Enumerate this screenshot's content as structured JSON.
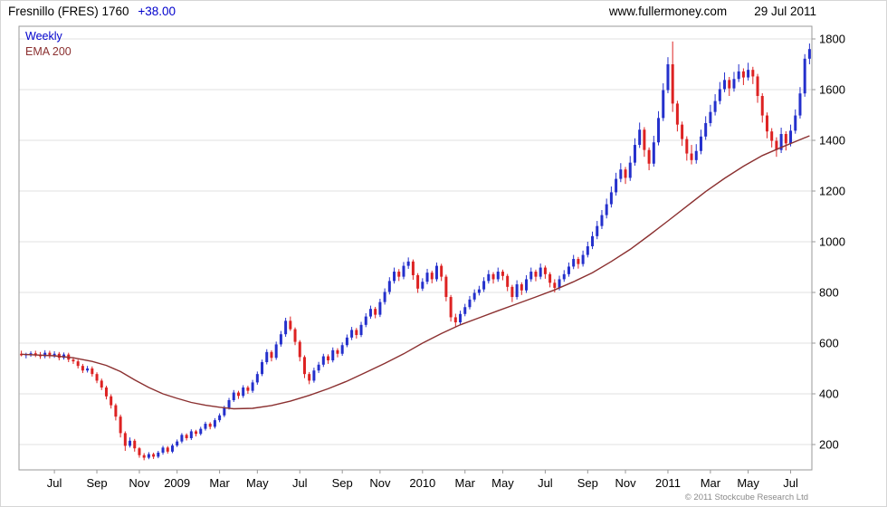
{
  "header": {
    "title": "Fresnillo (FRES) 1760",
    "change": "+38.00",
    "site": "www.fullermoney.com",
    "date": "29 Jul 2011"
  },
  "legend": {
    "weekly": "Weekly",
    "ema": "EMA 200"
  },
  "footer": {
    "copyright": "© 2011 Stockcube Research Ltd"
  },
  "colors": {
    "up": "#2430cc",
    "down": "#dd2222",
    "ema": "#8b3030",
    "grid": "#e2e2e2",
    "border": "#9a9a9a",
    "axis_text": "#000000",
    "accent_blue": "#0000cc",
    "copyright_gray": "#8a8a8a"
  },
  "chart_data": {
    "type": "candlestick",
    "title": "Fresnillo (FRES) Weekly with 200-period EMA",
    "interval": "Weekly",
    "overlay": "EMA 200",
    "last_price": 1760,
    "change": 38.0,
    "ylim": [
      100,
      1850
    ],
    "yticks": [
      200,
      400,
      600,
      800,
      1000,
      1200,
      1400,
      1600,
      1800
    ],
    "xticks": [
      [
        7,
        "Jul"
      ],
      [
        16,
        "Sep"
      ],
      [
        25,
        "Nov"
      ],
      [
        33,
        "2009"
      ],
      [
        42,
        "Mar"
      ],
      [
        50,
        "May"
      ],
      [
        59,
        "Jul"
      ],
      [
        68,
        "Sep"
      ],
      [
        76,
        "Nov"
      ],
      [
        85,
        "2010"
      ],
      [
        94,
        "Mar"
      ],
      [
        102,
        "May"
      ],
      [
        111,
        "Jul"
      ],
      [
        120,
        "Sep"
      ],
      [
        128,
        "Nov"
      ],
      [
        137,
        "2011"
      ],
      [
        146,
        "Mar"
      ],
      [
        154,
        "May"
      ],
      [
        163,
        "Jul"
      ]
    ],
    "ohlc": [
      [
        558,
        570,
        548,
        552
      ],
      [
        552,
        562,
        540,
        556
      ],
      [
        556,
        568,
        546,
        560
      ],
      [
        560,
        570,
        545,
        555
      ],
      [
        555,
        565,
        538,
        548
      ],
      [
        548,
        572,
        540,
        562
      ],
      [
        562,
        570,
        540,
        550
      ],
      [
        550,
        568,
        542,
        558
      ],
      [
        558,
        565,
        532,
        542
      ],
      [
        542,
        563,
        535,
        555
      ],
      [
        555,
        562,
        525,
        535
      ],
      [
        535,
        545,
        518,
        528
      ],
      [
        528,
        535,
        500,
        510
      ],
      [
        510,
        518,
        482,
        492
      ],
      [
        492,
        510,
        484,
        500
      ],
      [
        500,
        508,
        468,
        478
      ],
      [
        478,
        485,
        442,
        452
      ],
      [
        452,
        460,
        415,
        425
      ],
      [
        425,
        432,
        378,
        390
      ],
      [
        390,
        398,
        342,
        355
      ],
      [
        355,
        362,
        295,
        310
      ],
      [
        310,
        318,
        228,
        245
      ],
      [
        245,
        252,
        175,
        195
      ],
      [
        195,
        228,
        188,
        215
      ],
      [
        215,
        222,
        172,
        185
      ],
      [
        185,
        190,
        148,
        158
      ],
      [
        158,
        166,
        138,
        148
      ],
      [
        148,
        170,
        142,
        162
      ],
      [
        162,
        168,
        143,
        152
      ],
      [
        152,
        175,
        146,
        168
      ],
      [
        168,
        195,
        160,
        188
      ],
      [
        188,
        194,
        164,
        172
      ],
      [
        172,
        203,
        166,
        196
      ],
      [
        196,
        220,
        190,
        212
      ],
      [
        212,
        245,
        205,
        238
      ],
      [
        238,
        244,
        216,
        225
      ],
      [
        225,
        260,
        218,
        252
      ],
      [
        252,
        258,
        232,
        242
      ],
      [
        242,
        270,
        236,
        262
      ],
      [
        262,
        290,
        255,
        282
      ],
      [
        282,
        288,
        260,
        270
      ],
      [
        270,
        304,
        263,
        296
      ],
      [
        296,
        323,
        288,
        315
      ],
      [
        315,
        353,
        308,
        345
      ],
      [
        345,
        384,
        338,
        375
      ],
      [
        375,
        415,
        368,
        405
      ],
      [
        405,
        412,
        380,
        392
      ],
      [
        392,
        434,
        384,
        425
      ],
      [
        425,
        432,
        400,
        412
      ],
      [
        412,
        455,
        404,
        445
      ],
      [
        445,
        488,
        436,
        478
      ],
      [
        478,
        535,
        470,
        525
      ],
      [
        525,
        576,
        516,
        565
      ],
      [
        565,
        572,
        528,
        542
      ],
      [
        542,
        606,
        534,
        595
      ],
      [
        595,
        648,
        586,
        635
      ],
      [
        635,
        700,
        625,
        688
      ],
      [
        688,
        705,
        648,
        655
      ],
      [
        655,
        662,
        592,
        605
      ],
      [
        605,
        612,
        528,
        545
      ],
      [
        545,
        552,
        462,
        478
      ],
      [
        478,
        486,
        438,
        452
      ],
      [
        452,
        503,
        444,
        492
      ],
      [
        492,
        526,
        482,
        515
      ],
      [
        515,
        558,
        506,
        548
      ],
      [
        548,
        556,
        518,
        532
      ],
      [
        532,
        583,
        524,
        572
      ],
      [
        572,
        580,
        544,
        558
      ],
      [
        558,
        603,
        550,
        592
      ],
      [
        592,
        634,
        584,
        622
      ],
      [
        622,
        664,
        612,
        652
      ],
      [
        652,
        660,
        618,
        632
      ],
      [
        632,
        684,
        624,
        672
      ],
      [
        672,
        718,
        663,
        705
      ],
      [
        705,
        748,
        696,
        735
      ],
      [
        735,
        743,
        698,
        712
      ],
      [
        712,
        775,
        703,
        762
      ],
      [
        762,
        816,
        752,
        802
      ],
      [
        802,
        860,
        792,
        845
      ],
      [
        845,
        898,
        835,
        882
      ],
      [
        882,
        892,
        845,
        862
      ],
      [
        862,
        920,
        852,
        905
      ],
      [
        905,
        938,
        893,
        922
      ],
      [
        922,
        930,
        850,
        868
      ],
      [
        868,
        876,
        798,
        815
      ],
      [
        815,
        856,
        806,
        842
      ],
      [
        842,
        893,
        832,
        878
      ],
      [
        878,
        886,
        836,
        852
      ],
      [
        852,
        918,
        843,
        905
      ],
      [
        905,
        913,
        845,
        862
      ],
      [
        862,
        870,
        765,
        782
      ],
      [
        782,
        790,
        685,
        702
      ],
      [
        702,
        716,
        666,
        682
      ],
      [
        682,
        728,
        672,
        715
      ],
      [
        715,
        755,
        706,
        742
      ],
      [
        742,
        786,
        733,
        772
      ],
      [
        772,
        812,
        763,
        798
      ],
      [
        798,
        826,
        788,
        812
      ],
      [
        812,
        860,
        802,
        845
      ],
      [
        845,
        888,
        835,
        872
      ],
      [
        872,
        880,
        835,
        852
      ],
      [
        852,
        898,
        842,
        882
      ],
      [
        882,
        890,
        848,
        865
      ],
      [
        865,
        873,
        805,
        822
      ],
      [
        822,
        830,
        762,
        782
      ],
      [
        782,
        848,
        772,
        832
      ],
      [
        832,
        840,
        790,
        808
      ],
      [
        808,
        868,
        798,
        852
      ],
      [
        852,
        898,
        842,
        882
      ],
      [
        882,
        890,
        844,
        862
      ],
      [
        862,
        914,
        852,
        898
      ],
      [
        898,
        906,
        854,
        872
      ],
      [
        872,
        880,
        820,
        838
      ],
      [
        838,
        852,
        800,
        818
      ],
      [
        818,
        866,
        808,
        852
      ],
      [
        852,
        888,
        842,
        872
      ],
      [
        872,
        918,
        862,
        902
      ],
      [
        902,
        948,
        892,
        932
      ],
      [
        932,
        940,
        894,
        912
      ],
      [
        912,
        965,
        902,
        948
      ],
      [
        948,
        1000,
        938,
        982
      ],
      [
        982,
        1040,
        971,
        1022
      ],
      [
        1022,
        1082,
        1010,
        1062
      ],
      [
        1062,
        1125,
        1050,
        1105
      ],
      [
        1105,
        1170,
        1092,
        1148
      ],
      [
        1148,
        1218,
        1135,
        1195
      ],
      [
        1195,
        1272,
        1182,
        1248
      ],
      [
        1248,
        1310,
        1235,
        1285
      ],
      [
        1285,
        1295,
        1228,
        1252
      ],
      [
        1252,
        1338,
        1240,
        1312
      ],
      [
        1312,
        1408,
        1300,
        1382
      ],
      [
        1382,
        1470,
        1370,
        1442
      ],
      [
        1442,
        1452,
        1335,
        1362
      ],
      [
        1362,
        1372,
        1282,
        1308
      ],
      [
        1308,
        1418,
        1296,
        1392
      ],
      [
        1392,
        1515,
        1380,
        1488
      ],
      [
        1488,
        1625,
        1476,
        1598
      ],
      [
        1598,
        1728,
        1586,
        1700
      ],
      [
        1700,
        1790,
        1512,
        1545
      ],
      [
        1545,
        1556,
        1435,
        1462
      ],
      [
        1462,
        1474,
        1378,
        1405
      ],
      [
        1405,
        1416,
        1320,
        1348
      ],
      [
        1348,
        1382,
        1305,
        1322
      ],
      [
        1322,
        1385,
        1308,
        1358
      ],
      [
        1358,
        1442,
        1345,
        1415
      ],
      [
        1415,
        1495,
        1402,
        1468
      ],
      [
        1468,
        1540,
        1455,
        1512
      ],
      [
        1512,
        1582,
        1498,
        1555
      ],
      [
        1555,
        1630,
        1542,
        1602
      ],
      [
        1602,
        1668,
        1590,
        1638
      ],
      [
        1638,
        1650,
        1575,
        1605
      ],
      [
        1605,
        1670,
        1592,
        1642
      ],
      [
        1642,
        1700,
        1630,
        1672
      ],
      [
        1672,
        1684,
        1618,
        1648
      ],
      [
        1648,
        1706,
        1636,
        1678
      ],
      [
        1678,
        1690,
        1622,
        1652
      ],
      [
        1652,
        1662,
        1548,
        1575
      ],
      [
        1575,
        1586,
        1470,
        1498
      ],
      [
        1498,
        1510,
        1408,
        1435
      ],
      [
        1435,
        1448,
        1372,
        1398
      ],
      [
        1398,
        1412,
        1335,
        1362
      ],
      [
        1362,
        1450,
        1350,
        1425
      ],
      [
        1425,
        1436,
        1360,
        1388
      ],
      [
        1388,
        1462,
        1376,
        1438
      ],
      [
        1438,
        1522,
        1426,
        1498
      ],
      [
        1498,
        1610,
        1486,
        1585
      ],
      [
        1585,
        1740,
        1572,
        1722
      ],
      [
        1722,
        1782,
        1700,
        1760
      ]
    ],
    "ema200": [
      [
        0,
        556
      ],
      [
        7,
        550
      ],
      [
        11,
        542
      ],
      [
        15,
        528
      ],
      [
        18,
        512
      ],
      [
        21,
        488
      ],
      [
        24,
        455
      ],
      [
        27,
        425
      ],
      [
        30,
        400
      ],
      [
        33,
        382
      ],
      [
        36,
        366
      ],
      [
        39,
        355
      ],
      [
        42,
        347
      ],
      [
        45,
        341
      ],
      [
        49,
        343
      ],
      [
        53,
        354
      ],
      [
        57,
        371
      ],
      [
        61,
        394
      ],
      [
        65,
        420
      ],
      [
        69,
        450
      ],
      [
        73,
        485
      ],
      [
        77,
        520
      ],
      [
        81,
        558
      ],
      [
        85,
        600
      ],
      [
        89,
        638
      ],
      [
        93,
        672
      ],
      [
        97,
        700
      ],
      [
        101,
        728
      ],
      [
        105,
        755
      ],
      [
        109,
        782
      ],
      [
        113,
        810
      ],
      [
        117,
        842
      ],
      [
        121,
        878
      ],
      [
        125,
        922
      ],
      [
        129,
        970
      ],
      [
        133,
        1025
      ],
      [
        137,
        1082
      ],
      [
        141,
        1140
      ],
      [
        145,
        1198
      ],
      [
        149,
        1250
      ],
      [
        153,
        1298
      ],
      [
        157,
        1340
      ],
      [
        161,
        1372
      ],
      [
        164,
        1395
      ],
      [
        167,
        1418
      ]
    ]
  }
}
